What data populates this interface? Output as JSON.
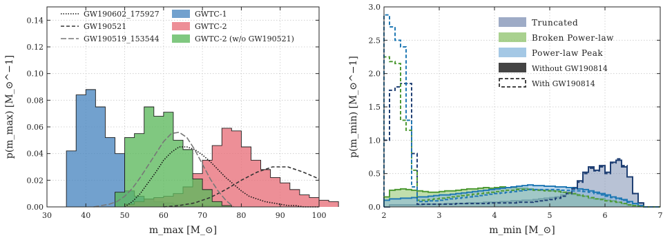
{
  "chart_data": [
    {
      "type": "histogram",
      "xlabel": "m_max [M_⊙]",
      "ylabel": "p(m_max) [M_⊙^−1]",
      "xlim": [
        30,
        100
      ],
      "ylim": [
        0,
        0.15
      ],
      "xticks": [
        30,
        40,
        50,
        60,
        70,
        80,
        90,
        100
      ],
      "yticks": [
        0.0,
        0.02,
        0.04,
        0.06,
        0.08,
        0.1,
        0.12,
        0.14
      ],
      "ytick_labels": [
        "0.00",
        "0.02",
        "0.04",
        "0.06",
        "0.08",
        "0.10",
        "0.12",
        "0.14"
      ],
      "grid": true,
      "legend_position": "top",
      "bin_width": 2.5,
      "series": [
        {
          "name": "GWTC-1",
          "kind": "hist",
          "color": "#4a86c0",
          "bin_start": 35,
          "values": [
            0.042,
            0.084,
            0.088,
            0.075,
            0.052,
            0.04,
            0.012,
            0.008,
            0.006,
            0.004,
            0.003,
            0.002,
            0.002,
            0.001,
            0.001,
            0.001,
            0.0,
            0.0,
            0.0,
            0.0,
            0.0,
            0.0,
            0.0,
            0.0,
            0.0,
            0.0
          ]
        },
        {
          "name": "GWTC-2",
          "kind": "hist",
          "color": "#e8707a",
          "bin_start": 50,
          "values": [
            0.002,
            0.004,
            0.006,
            0.007,
            0.008,
            0.01,
            0.015,
            0.025,
            0.035,
            0.046,
            0.059,
            0.057,
            0.045,
            0.035,
            0.028,
            0.022,
            0.018,
            0.013,
            0.009,
            0.007,
            0.005,
            0.004
          ]
        },
        {
          "name": "GWTC-2 (w/o GW190521)",
          "kind": "hist",
          "color": "#5cb85c",
          "bin_start": 47.5,
          "values": [
            0.011,
            0.052,
            0.055,
            0.075,
            0.068,
            0.071,
            0.05,
            0.043,
            0.021,
            0.013,
            0.004,
            0.001
          ]
        },
        {
          "name": "GW190602_175927",
          "kind": "curve",
          "style": "dotted",
          "x": [
            50,
            52,
            54,
            56,
            58,
            60,
            62,
            64,
            66,
            68,
            70,
            72,
            74,
            76,
            78,
            80,
            82,
            84,
            86,
            88,
            90,
            92,
            94,
            96,
            98,
            100
          ],
          "y": [
            0.0,
            0.004,
            0.01,
            0.018,
            0.026,
            0.035,
            0.041,
            0.045,
            0.045,
            0.043,
            0.039,
            0.034,
            0.028,
            0.022,
            0.017,
            0.012,
            0.008,
            0.006,
            0.004,
            0.003,
            0.002,
            0.001,
            0.001,
            0.0,
            0.0,
            0.0
          ]
        },
        {
          "name": "GW190521",
          "kind": "curve",
          "style": "dashed",
          "x": [
            60,
            64,
            68,
            72,
            76,
            80,
            84,
            88,
            92,
            96,
            100
          ],
          "y": [
            0.0,
            0.001,
            0.003,
            0.007,
            0.013,
            0.02,
            0.026,
            0.03,
            0.03,
            0.026,
            0.021
          ]
        },
        {
          "name": "GW190519_153544",
          "kind": "curve",
          "style": "dashdot",
          "x": [
            42,
            44,
            46,
            48,
            50,
            52,
            54,
            56,
            58,
            60,
            62,
            64,
            66,
            68,
            70,
            72,
            74,
            76,
            78
          ],
          "y": [
            0.0,
            0.001,
            0.002,
            0.004,
            0.008,
            0.014,
            0.022,
            0.031,
            0.04,
            0.049,
            0.055,
            0.056,
            0.052,
            0.043,
            0.032,
            0.021,
            0.012,
            0.005,
            0.0
          ]
        }
      ]
    },
    {
      "type": "histogram",
      "xlabel": "m_min [M_⊙]",
      "ylabel": "p(m_min) [M_⊙^−1]",
      "xlim": [
        2,
        7
      ],
      "ylim": [
        0,
        3.0
      ],
      "xticks": [
        2,
        3,
        4,
        5,
        6,
        7
      ],
      "yticks": [
        0.0,
        0.5,
        1.0,
        1.5,
        2.0,
        2.5,
        3.0
      ],
      "ytick_labels": [
        "0.0",
        "0.5",
        "1.0",
        "1.5",
        "2.0",
        "2.5",
        "3.0"
      ],
      "grid": true,
      "legend_position": "top-right",
      "bin_width": 0.1,
      "bin_start": 2.0,
      "legend_swatches": [
        {
          "label": "Truncated",
          "color": "#7d8fb3",
          "kind": "fill"
        },
        {
          "label": "Broken Power-law",
          "color": "#8cc26a",
          "kind": "fill"
        },
        {
          "label": "Power-law Peak",
          "color": "#86b6dc",
          "kind": "fill"
        },
        {
          "label": "Without GW190814",
          "color": "#444444",
          "kind": "fill"
        },
        {
          "label": "With GW190814",
          "color": "#444444",
          "kind": "dashed"
        }
      ],
      "series": [
        {
          "name": "Truncated",
          "fill": "#7d8fb3",
          "line": "#1f3f73",
          "values": [
            0.0,
            0.03,
            0.03,
            0.03,
            0.03,
            0.03,
            0.03,
            0.04,
            0.04,
            0.04,
            0.04,
            0.05,
            0.05,
            0.05,
            0.05,
            0.06,
            0.06,
            0.06,
            0.07,
            0.07,
            0.07,
            0.08,
            0.08,
            0.09,
            0.09,
            0.1,
            0.1,
            0.11,
            0.12,
            0.13,
            0.14,
            0.15,
            0.18,
            0.22,
            0.29,
            0.39,
            0.52,
            0.6,
            0.55,
            0.62,
            0.52,
            0.67,
            0.7,
            0.6,
            0.45,
            0.2,
            0.06,
            0.0,
            0.0,
            0.0
          ],
          "dashed_values": [
            1.0,
            1.75,
            1.8,
            1.85,
            1.85,
            0.8,
            0.04,
            0.04,
            0.04,
            0.04,
            0.04,
            0.04,
            0.04,
            0.05,
            0.05,
            0.05,
            0.05,
            0.05,
            0.05,
            0.06,
            0.06,
            0.06,
            0.06,
            0.06,
            0.07,
            0.07,
            0.07,
            0.08,
            0.09,
            0.1,
            0.11,
            0.13,
            0.16,
            0.2,
            0.27,
            0.37,
            0.5,
            0.58,
            0.54,
            0.6,
            0.5,
            0.66,
            0.72,
            0.62,
            0.45,
            0.2,
            0.06,
            0.0,
            0.0,
            0.0
          ]
        },
        {
          "name": "Broken Power-law",
          "fill": "#8cc26a",
          "line": "#4e9a34",
          "values": [
            0.15,
            0.25,
            0.26,
            0.27,
            0.26,
            0.25,
            0.24,
            0.23,
            0.22,
            0.22,
            0.23,
            0.24,
            0.24,
            0.25,
            0.26,
            0.27,
            0.27,
            0.28,
            0.29,
            0.28,
            0.29,
            0.3,
            0.29,
            0.29,
            0.28,
            0.28,
            0.27,
            0.26,
            0.25,
            0.25,
            0.24,
            0.24,
            0.22,
            0.2,
            0.19,
            0.17,
            0.16,
            0.13,
            0.12,
            0.12,
            0.1,
            0.09,
            0.07,
            0.05,
            0.03,
            0.02,
            0.01,
            0.0,
            0.0,
            0.0
          ],
          "dashed_values": [
            2.25,
            2.18,
            2.15,
            1.3,
            1.15,
            0.55,
            0.1,
            0.1,
            0.11,
            0.12,
            0.13,
            0.14,
            0.15,
            0.16,
            0.17,
            0.18,
            0.19,
            0.2,
            0.21,
            0.22,
            0.23,
            0.24,
            0.25,
            0.25,
            0.26,
            0.26,
            0.26,
            0.25,
            0.25,
            0.24,
            0.24,
            0.23,
            0.22,
            0.21,
            0.2,
            0.18,
            0.16,
            0.14,
            0.12,
            0.11,
            0.09,
            0.08,
            0.07,
            0.05,
            0.03,
            0.02,
            0.01,
            0.0,
            0.0,
            0.0
          ]
        },
        {
          "name": "Power-law Peak",
          "fill": "#86b6dc",
          "line": "#1f78b4",
          "values": [
            0.1,
            0.12,
            0.12,
            0.13,
            0.13,
            0.14,
            0.15,
            0.15,
            0.16,
            0.17,
            0.18,
            0.18,
            0.19,
            0.2,
            0.21,
            0.22,
            0.23,
            0.24,
            0.25,
            0.26,
            0.27,
            0.28,
            0.29,
            0.3,
            0.31,
            0.32,
            0.33,
            0.32,
            0.32,
            0.31,
            0.31,
            0.3,
            0.3,
            0.29,
            0.28,
            0.27,
            0.26,
            0.24,
            0.22,
            0.2,
            0.18,
            0.15,
            0.13,
            0.11,
            0.08,
            0.05,
            0.02,
            0.0,
            0.0,
            0.0
          ],
          "dashed_values": [
            2.88,
            2.7,
            2.5,
            2.4,
            1.3,
            0.3,
            0.08,
            0.08,
            0.09,
            0.09,
            0.1,
            0.11,
            0.12,
            0.13,
            0.14,
            0.15,
            0.16,
            0.17,
            0.18,
            0.19,
            0.2,
            0.21,
            0.22,
            0.23,
            0.24,
            0.25,
            0.26,
            0.26,
            0.26,
            0.26,
            0.26,
            0.26,
            0.25,
            0.25,
            0.24,
            0.24,
            0.23,
            0.22,
            0.2,
            0.18,
            0.16,
            0.14,
            0.12,
            0.1,
            0.07,
            0.05,
            0.02,
            0.0,
            0.0,
            0.0
          ]
        }
      ]
    }
  ]
}
